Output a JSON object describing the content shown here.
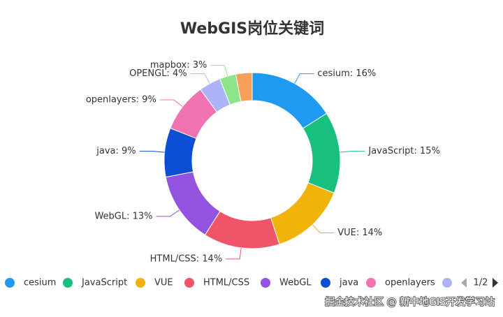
{
  "chart_data": {
    "type": "donut",
    "title": "WebGIS岗位关键词",
    "categories": [
      "cesium",
      "JavaScript",
      "VUE",
      "HTML/CSS",
      "WebGL",
      "java",
      "openlayers",
      "OPENGL",
      "mapbox",
      null
    ],
    "values": [
      16,
      15,
      14,
      14,
      13,
      9,
      9,
      4,
      3,
      3
    ],
    "value_labels": [
      "cesium: 16%",
      "JavaScript: 15%",
      "VUE: 14%",
      "HTML/CSS: 14%",
      "WebGL: 13%",
      "java: 9%",
      "openlayers: 9%",
      "OPENGL: 4%",
      "mapbox: 3%",
      null
    ],
    "colors": [
      "#1e9bf0",
      "#17c07f",
      "#f0b30a",
      "#f05468",
      "#9353df",
      "#0c4fd4",
      "#f172b0",
      "#aab4f6",
      "#8ee48a",
      "#f7a05a"
    ],
    "legend_page": "1/2",
    "watermark": "掘金技术社区 @ 新中地GIS开发学习站"
  }
}
